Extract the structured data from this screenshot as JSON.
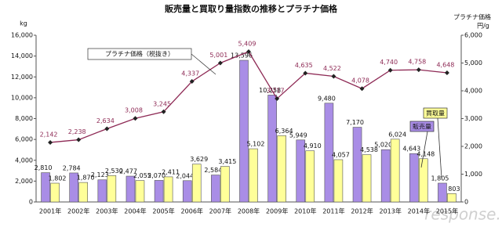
{
  "chart_data": {
    "type": "bar",
    "title": "販売量と買取り量指数の推移とプラチナ価格",
    "y_label": "kg",
    "y2_label": "プラチナ価格",
    "y2_unit": "円/g",
    "categories": [
      "2001年",
      "2002年",
      "2003年",
      "2004年",
      "2005年",
      "2006年",
      "2007年",
      "2008年",
      "2009年",
      "2010年",
      "2011年",
      "2012年",
      "2013年",
      "2014年",
      "2015年"
    ],
    "series": [
      {
        "name": "販売量",
        "color": "#a98de6",
        "values": [
          2810,
          2784,
          2123,
          2477,
          2070,
          2044,
          2584,
          13596,
          10258,
          5949,
          9480,
          7170,
          5020,
          4643,
          1805
        ],
        "value_labels": [
          "2,810",
          "2,784",
          "2,123",
          "2,477",
          "2,070",
          "2,044",
          "2,584",
          "13,596",
          "10,258",
          "5,949",
          "9,480",
          "7,170",
          "5,020",
          "4,643",
          "1,805"
        ]
      },
      {
        "name": "買取量",
        "color": "#ffff99",
        "values": [
          1802,
          1870,
          2530,
          2055,
          2411,
          3629,
          3415,
          5102,
          6364,
          4910,
          4057,
          4538,
          6024,
          4148,
          803
        ],
        "value_labels": [
          "1,802",
          "1,870",
          "2,530",
          "2,055",
          "2,411",
          "3,629",
          "3,415",
          "5,102",
          "6,364",
          "4,910",
          "4,057",
          "4,538",
          "6,024",
          "4,148",
          "803"
        ]
      },
      {
        "name": "プラチナ価格（税抜き）",
        "type": "line",
        "axis": "y2",
        "color": "#8e2a55",
        "marker_color": "#222222",
        "values": [
          2142,
          2238,
          2634,
          3008,
          3245,
          4337,
          5001,
          5409,
          3717,
          4635,
          4522,
          4078,
          4740,
          4758,
          4648
        ],
        "value_labels": [
          "2,142",
          "2,238",
          "2,634",
          "3,008",
          "3,245",
          "4,337",
          "5,001",
          "5,409",
          "3,717",
          "4,635",
          "4,522",
          "4,078",
          "4,740",
          "4,758",
          "4,648"
        ]
      }
    ],
    "ylim": [
      0,
      16000
    ],
    "yticks": [
      0,
      {
        "value": 2000,
        "label": "2,000"
      },
      {
        "value": 4000,
        "label": "4,000"
      },
      {
        "value": 6000,
        "label": "6,000"
      },
      {
        "value": 8000,
        "label": "8,000"
      },
      {
        "value": 10000,
        "label": "10,000"
      },
      {
        "value": 12000,
        "label": "12,000"
      },
      {
        "value": 14000,
        "label": "14,000"
      },
      {
        "value": 16000,
        "label": "16,000"
      }
    ],
    "y2lim": [
      0,
      6000
    ],
    "y2ticks": [
      0,
      {
        "value": 1000,
        "label": "1,000"
      },
      {
        "value": 2000,
        "label": "2,000"
      },
      {
        "value": 3000,
        "label": "3,000"
      },
      {
        "value": 4000,
        "label": "4,000"
      },
      {
        "value": 5000,
        "label": "5,000"
      },
      {
        "value": 6000,
        "label": "6,000"
      }
    ],
    "grid": false,
    "watermark": "response."
  }
}
